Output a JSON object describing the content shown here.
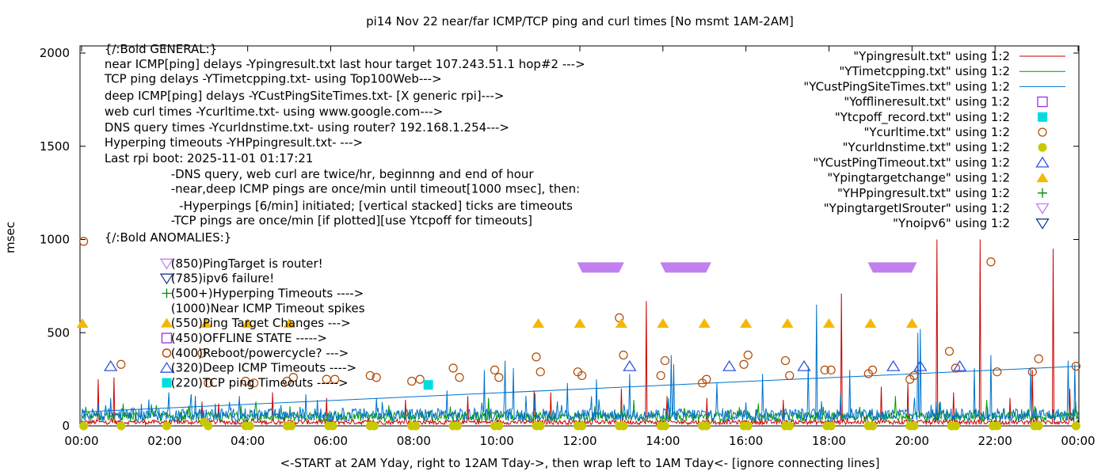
{
  "chart_data": {
    "type": "line",
    "title": "pi14 Nov 22  near/far ICMP/TCP ping and curl times [No msmt 1AM-2AM]",
    "xlabel": "<-START at 2AM Yday, right to 12AM Tday->, then wrap left to 1AM Tday<- [ignore connecting lines]",
    "ylabel": "msec",
    "xlim": [
      0,
      24
    ],
    "ylim": [
      0,
      2050
    ],
    "x_ticks": [
      {
        "x": 0,
        "label": "00:00"
      },
      {
        "x": 2,
        "label": "02:00"
      },
      {
        "x": 4,
        "label": "04:00"
      },
      {
        "x": 6,
        "label": "06:00"
      },
      {
        "x": 8,
        "label": "08:00"
      },
      {
        "x": 10,
        "label": "10:00"
      },
      {
        "x": 12,
        "label": "12:00"
      },
      {
        "x": 14,
        "label": "14:00"
      },
      {
        "x": 16,
        "label": "16:00"
      },
      {
        "x": 18,
        "label": "18:00"
      },
      {
        "x": 20,
        "label": "20:00"
      },
      {
        "x": 22,
        "label": "22:00"
      },
      {
        "x": 24,
        "label": "00:00"
      }
    ],
    "y_ticks": [
      {
        "y": 0,
        "label": "0"
      },
      {
        "y": 500,
        "label": "500"
      },
      {
        "y": 1000,
        "label": "1000"
      },
      {
        "y": 1500,
        "label": "1500"
      },
      {
        "y": 2000,
        "label": "2000"
      }
    ],
    "grid": false,
    "legend_position": "top-right",
    "legend": [
      {
        "label": "\"Ypingresult.txt\" using 1:2",
        "marker": "line",
        "color": "#cc0000"
      },
      {
        "label": "\"YTimetcpping.txt\" using 1:2",
        "marker": "line",
        "color": "#009900"
      },
      {
        "label": "\"YCustPingSiteTimes.txt\" using 1:2",
        "marker": "line",
        "color": "#0072cc"
      },
      {
        "label": "\"Yofflineresult.txt\" using 1:2",
        "marker": "square-open",
        "color": "#9b30d9"
      },
      {
        "label": "\"Ytcpoff_record.txt\" using 1:2",
        "marker": "square-filled",
        "color": "#00dddd"
      },
      {
        "label": "\"Ycurltime.txt\" using 1:2",
        "marker": "circle-open",
        "color": "#b34700"
      },
      {
        "label": "\"Ycurldnstime.txt\" using 1:2",
        "marker": "circle-filled",
        "color": "#c8c800"
      },
      {
        "label": "\"YCustPingTimeout.txt\" using 1:2",
        "marker": "triangle-open",
        "color": "#3355dd"
      },
      {
        "label": "\"Ypingtargetchange\" using 1:2",
        "marker": "triangle-filled",
        "color": "#f5b800"
      },
      {
        "label": "\"YHPpingresult.txt\" using 1:2",
        "marker": "plus",
        "color": "#008800"
      },
      {
        "label": "\"YpingtargetISrouter\" using 1:2",
        "marker": "triangle-down-open",
        "color": "#c080f0"
      },
      {
        "label": "\"Ynoipv6\" using 1:2",
        "marker": "triangle-down-open",
        "color": "#1a3f8f"
      }
    ],
    "info_lines": [
      {
        "text": "{/:Bold GENERAL:}",
        "y": 2000,
        "x": 0.55,
        "marker": null
      },
      {
        "text": "near ICMP[ping] delays -Ypingresult.txt last hour target 107.243.51.1 hop#2 --->",
        "y": 1920,
        "x": 0.55,
        "marker": null
      },
      {
        "text": "TCP ping delays -YTimetcpping.txt- using Top100Web--->",
        "y": 1840,
        "x": 0.55,
        "marker": null
      },
      {
        "text": "deep ICMP[ping] delays -YCustPingSiteTimes.txt- [X generic rpi]--->",
        "y": 1750,
        "x": 0.55,
        "marker": null
      },
      {
        "text": "web curl times -Ycurltime.txt- using www.google.com--->",
        "y": 1665,
        "x": 0.55,
        "marker": null
      },
      {
        "text": "DNS query times -Ycurldnstime.txt- using router? 192.168.1.254--->",
        "y": 1580,
        "x": 0.55,
        "marker": null
      },
      {
        "text": "Hyperping timeouts -YHPpingresult.txt- --->",
        "y": 1500,
        "x": 0.55,
        "marker": null
      },
      {
        "text": "Last rpi boot: 2025-11-01 01:17:21",
        "y": 1415,
        "x": 0.55,
        "marker": null
      },
      {
        "text": "-DNS query, web curl are twice/hr, beginnng and end of hour",
        "y": 1330,
        "x": 2.15,
        "marker": null
      },
      {
        "text": "-near,deep ICMP pings are once/min until timeout[1000 msec], then:",
        "y": 1250,
        "x": 2.15,
        "marker": null
      },
      {
        "text": "-Hyperpings [6/min] initiated; [vertical stacked] ticks are timeouts",
        "y": 1160,
        "x": 2.35,
        "marker": null
      },
      {
        "text": "-TCP pings are once/min [if plotted][use Ytcpoff for timeouts]",
        "y": 1080,
        "x": 2.15,
        "marker": null
      },
      {
        "text": "{/:Bold ANOMALIES:}",
        "y": 990,
        "x": 0.55,
        "marker": null
      },
      {
        "text": "(850)PingTarget is router!",
        "y": 850,
        "x": 2.15,
        "marker": "triangle-down-open",
        "color": "#c080f0"
      },
      {
        "text": "(785)ipv6 failure!",
        "y": 770,
        "x": 2.15,
        "marker": "triangle-down-open",
        "color": "#1a3f8f"
      },
      {
        "text": "(500+)Hyperping Timeouts ---->",
        "y": 690,
        "x": 2.15,
        "marker": "plus",
        "color": "#008800"
      },
      {
        "text": "(1000)Near ICMP Timeout spikes",
        "y": 610,
        "x": 2.15,
        "marker": null
      },
      {
        "text": "(550)Ping Target Changes --->",
        "y": 530,
        "x": 2.15,
        "marker": "triangle-filled",
        "color": "#f5b800"
      },
      {
        "text": "(450)OFFLINE STATE ----->",
        "y": 450,
        "x": 2.15,
        "marker": "square-open",
        "color": "#9b30d9"
      },
      {
        "text": "(400)Reboot/powercycle? --->",
        "y": 370,
        "x": 2.15,
        "marker": "circle-open",
        "color": "#b34700"
      },
      {
        "text": "(320)Deep ICMP Timeouts ---->",
        "y": 290,
        "x": 2.15,
        "marker": "triangle-open",
        "color": "#3355dd"
      },
      {
        "text": "(220)TCP ping Timeouts ----->",
        "y": 210,
        "x": 2.15,
        "marker": "square-filled",
        "color": "#00dddd"
      }
    ],
    "series": [
      {
        "name": "\"Ypingresult.txt\" using 1:2",
        "kind": "noise-line",
        "color": "#cc0000",
        "baseline": 20,
        "noise": 12,
        "spikes": [
          {
            "x": 0.4,
            "y": 250
          },
          {
            "x": 0.78,
            "y": 260
          },
          {
            "x": 2.9,
            "y": 130
          },
          {
            "x": 3.3,
            "y": 120
          },
          {
            "x": 4.6,
            "y": 180
          },
          {
            "x": 5.9,
            "y": 150
          },
          {
            "x": 7.8,
            "y": 140
          },
          {
            "x": 9.3,
            "y": 160
          },
          {
            "x": 10.9,
            "y": 190
          },
          {
            "x": 11.3,
            "y": 180
          },
          {
            "x": 13.0,
            "y": 200
          },
          {
            "x": 13.6,
            "y": 670
          },
          {
            "x": 14.1,
            "y": 160
          },
          {
            "x": 15.05,
            "y": 150
          },
          {
            "x": 16.9,
            "y": 140
          },
          {
            "x": 18.3,
            "y": 710
          },
          {
            "x": 19.25,
            "y": 210
          },
          {
            "x": 19.9,
            "y": 230
          },
          {
            "x": 20.6,
            "y": 1000
          },
          {
            "x": 21.0,
            "y": 180
          },
          {
            "x": 21.65,
            "y": 1000
          },
          {
            "x": 22.35,
            "y": 150
          },
          {
            "x": 22.9,
            "y": 300
          },
          {
            "x": 23.4,
            "y": 950
          },
          {
            "x": 23.8,
            "y": 200
          }
        ]
      },
      {
        "name": "\"YTimetcpping.txt\" using 1:2",
        "kind": "noise-line",
        "color": "#009900",
        "baseline": 50,
        "noise": 25,
        "spikes": [
          {
            "x": 1.0,
            "y": 120
          },
          {
            "x": 4.2,
            "y": 130
          },
          {
            "x": 7.4,
            "y": 110
          },
          {
            "x": 9.8,
            "y": 150
          },
          {
            "x": 13.3,
            "y": 140
          },
          {
            "x": 16.3,
            "y": 120
          },
          {
            "x": 19.6,
            "y": 160
          },
          {
            "x": 21.8,
            "y": 140
          }
        ]
      },
      {
        "name": "\"YCustPingSiteTimes.txt\" using 1:2",
        "kind": "noise-line",
        "color": "#0072cc",
        "baseline": 60,
        "noise": 35,
        "spikes": [
          {
            "x": 0.7,
            "y": 150
          },
          {
            "x": 2.1,
            "y": 180
          },
          {
            "x": 3.8,
            "y": 160
          },
          {
            "x": 5.4,
            "y": 170
          },
          {
            "x": 7.1,
            "y": 150
          },
          {
            "x": 8.8,
            "y": 190
          },
          {
            "x": 9.7,
            "y": 300
          },
          {
            "x": 10.2,
            "y": 350
          },
          {
            "x": 10.4,
            "y": 310
          },
          {
            "x": 11.7,
            "y": 230
          },
          {
            "x": 12.4,
            "y": 250
          },
          {
            "x": 13.2,
            "y": 280
          },
          {
            "x": 14.2,
            "y": 380
          },
          {
            "x": 14.25,
            "y": 330
          },
          {
            "x": 15.3,
            "y": 230
          },
          {
            "x": 16.4,
            "y": 280
          },
          {
            "x": 17.5,
            "y": 320
          },
          {
            "x": 17.7,
            "y": 650
          },
          {
            "x": 18.5,
            "y": 300
          },
          {
            "x": 20.15,
            "y": 500
          },
          {
            "x": 20.2,
            "y": 520
          },
          {
            "x": 21.5,
            "y": 310
          },
          {
            "x": 21.9,
            "y": 380
          },
          {
            "x": 22.85,
            "y": 310
          },
          {
            "x": 23.75,
            "y": 350
          },
          {
            "x": 23.92,
            "y": 330
          }
        ]
      },
      {
        "name": "\"Ycurltime.txt\" using 1:2",
        "kind": "scatter",
        "marker": "circle-open",
        "color": "#b34700",
        "points": [
          [
            0.05,
            990
          ],
          [
            0.95,
            330
          ],
          [
            2.05,
            390
          ],
          [
            2.9,
            390
          ],
          [
            3.05,
            230
          ],
          [
            3.95,
            240
          ],
          [
            4.15,
            230
          ],
          [
            4.95,
            240
          ],
          [
            5.1,
            260
          ],
          [
            5.9,
            250
          ],
          [
            6.1,
            250
          ],
          [
            6.95,
            270
          ],
          [
            7.1,
            260
          ],
          [
            7.95,
            240
          ],
          [
            8.15,
            250
          ],
          [
            8.95,
            310
          ],
          [
            9.1,
            260
          ],
          [
            9.95,
            300
          ],
          [
            10.05,
            260
          ],
          [
            10.95,
            370
          ],
          [
            11.05,
            290
          ],
          [
            11.95,
            290
          ],
          [
            12.05,
            270
          ],
          [
            12.95,
            580
          ],
          [
            13.05,
            380
          ],
          [
            13.95,
            270
          ],
          [
            14.05,
            350
          ],
          [
            14.95,
            230
          ],
          [
            15.05,
            250
          ],
          [
            15.95,
            330
          ],
          [
            16.05,
            380
          ],
          [
            16.95,
            350
          ],
          [
            17.05,
            270
          ],
          [
            17.9,
            300
          ],
          [
            18.05,
            300
          ],
          [
            18.95,
            280
          ],
          [
            19.05,
            300
          ],
          [
            19.95,
            250
          ],
          [
            20.05,
            270
          ],
          [
            20.9,
            400
          ],
          [
            21.05,
            310
          ],
          [
            21.9,
            880
          ],
          [
            22.05,
            290
          ],
          [
            22.9,
            290
          ],
          [
            23.05,
            360
          ],
          [
            23.95,
            320
          ]
        ]
      },
      {
        "name": "\"Ycurldnstime.txt\" using 1:2",
        "kind": "scatter",
        "marker": "circle-filled",
        "color": "#c8c800",
        "points": [
          [
            0.05,
            0
          ],
          [
            0.95,
            0
          ],
          [
            2.05,
            0
          ],
          [
            2.95,
            20
          ],
          [
            3.05,
            0
          ],
          [
            3.95,
            0
          ],
          [
            4.05,
            0
          ],
          [
            4.95,
            0
          ],
          [
            5.05,
            0
          ],
          [
            5.95,
            0
          ],
          [
            6.05,
            0
          ],
          [
            6.95,
            0
          ],
          [
            7.05,
            0
          ],
          [
            7.95,
            0
          ],
          [
            8.05,
            0
          ],
          [
            8.95,
            0
          ],
          [
            9.05,
            0
          ],
          [
            9.95,
            0
          ],
          [
            10.05,
            0
          ],
          [
            10.95,
            0
          ],
          [
            11.05,
            0
          ],
          [
            11.95,
            0
          ],
          [
            12.05,
            0
          ],
          [
            12.95,
            0
          ],
          [
            13.05,
            0
          ],
          [
            13.95,
            0
          ],
          [
            14.05,
            0
          ],
          [
            14.95,
            0
          ],
          [
            15.05,
            0
          ],
          [
            15.95,
            0
          ],
          [
            16.05,
            0
          ],
          [
            16.95,
            0
          ],
          [
            17.05,
            0
          ],
          [
            17.95,
            0
          ],
          [
            18.05,
            0
          ],
          [
            18.95,
            0
          ],
          [
            19.05,
            0
          ],
          [
            19.95,
            0
          ],
          [
            20.05,
            0
          ],
          [
            20.95,
            0
          ],
          [
            21.05,
            0
          ],
          [
            21.95,
            0
          ],
          [
            22.05,
            0
          ],
          [
            22.95,
            0
          ],
          [
            23.05,
            0
          ],
          [
            23.95,
            0
          ]
        ]
      },
      {
        "name": "\"Ytcpoff_record.txt\" using 1:2",
        "kind": "scatter",
        "marker": "square-filled",
        "color": "#00dddd",
        "points": [
          [
            8.35,
            220
          ]
        ]
      },
      {
        "name": "\"YCustPingTimeout.txt\" using 1:2",
        "kind": "scatter",
        "marker": "triangle-open",
        "color": "#3355dd",
        "points": [
          [
            0.7,
            320
          ],
          [
            13.2,
            320
          ],
          [
            15.6,
            320
          ],
          [
            17.4,
            320
          ],
          [
            19.55,
            320
          ],
          [
            20.2,
            320
          ],
          [
            21.15,
            320
          ]
        ]
      },
      {
        "name": "\"Ypingtargetchange\" using 1:2",
        "kind": "scatter",
        "marker": "triangle-filled",
        "color": "#f5b800",
        "points": [
          [
            0.02,
            550
          ],
          [
            3.0,
            550
          ],
          [
            4.0,
            550
          ],
          [
            5.0,
            550
          ],
          [
            11.0,
            550
          ],
          [
            12.0,
            550
          ],
          [
            13.0,
            550
          ],
          [
            14.0,
            550
          ],
          [
            15.0,
            550
          ],
          [
            16.0,
            550
          ],
          [
            17.0,
            550
          ],
          [
            18.0,
            550
          ],
          [
            19.0,
            550
          ],
          [
            20.0,
            550
          ]
        ]
      },
      {
        "name": "\"YpingtargetISrouter\" using 1:2",
        "kind": "band",
        "marker": "triangle-down-open",
        "color": "#c080f0",
        "y": 850,
        "ranges": [
          [
            11.95,
            13.05
          ],
          [
            13.95,
            15.15
          ],
          [
            18.95,
            20.1
          ]
        ]
      }
    ]
  }
}
